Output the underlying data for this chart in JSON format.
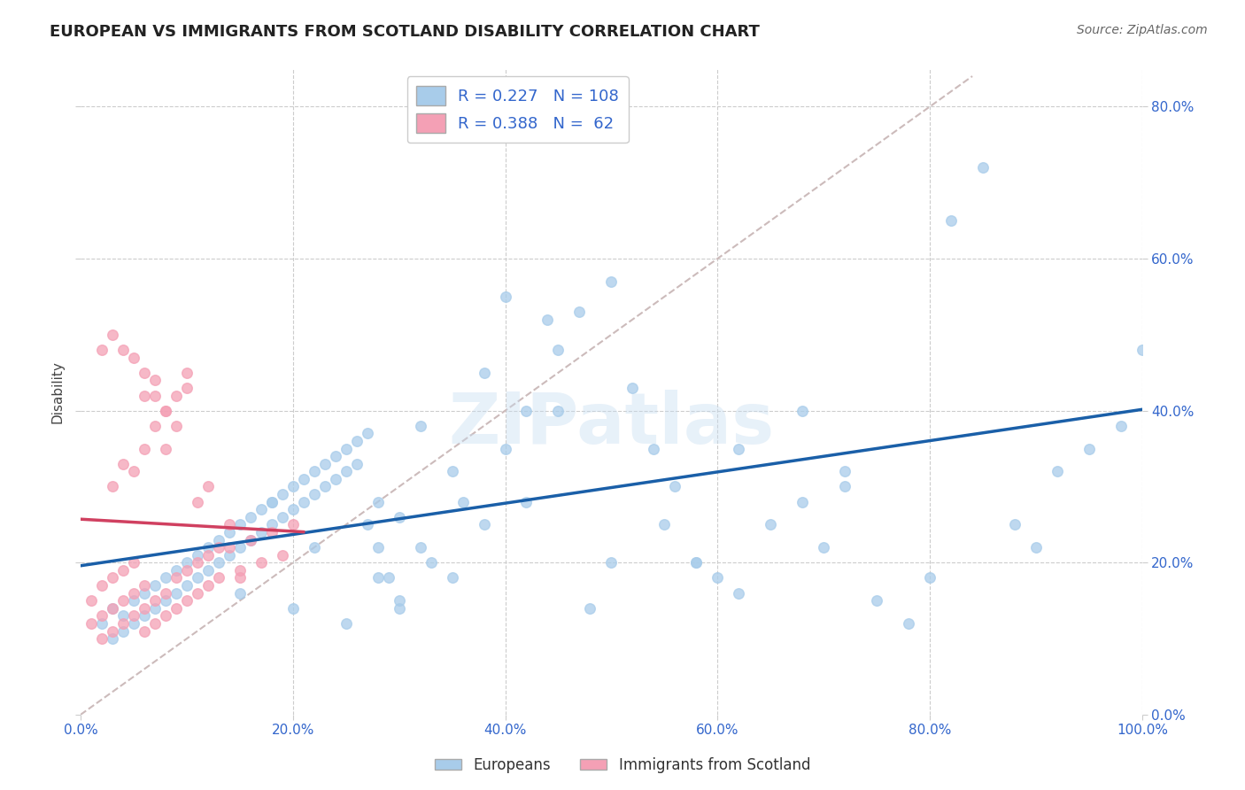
{
  "title": "EUROPEAN VS IMMIGRANTS FROM SCOTLAND DISABILITY CORRELATION CHART",
  "source": "Source: ZipAtlas.com",
  "ylabel": "Disability",
  "xlim": [
    0,
    1.0
  ],
  "ylim": [
    0,
    0.85
  ],
  "xticks": [
    0.0,
    0.2,
    0.4,
    0.6,
    0.8,
    1.0
  ],
  "yticks": [
    0.0,
    0.2,
    0.4,
    0.6,
    0.8
  ],
  "xtick_labels": [
    "0.0%",
    "20.0%",
    "40.0%",
    "60.0%",
    "80.0%",
    "100.0%"
  ],
  "ytick_labels": [
    "0.0%",
    "20.0%",
    "40.0%",
    "60.0%",
    "80.0%"
  ],
  "R_european": 0.227,
  "N_european": 108,
  "R_scotland": 0.388,
  "N_scotland": 62,
  "blue_color": "#A8CCEA",
  "pink_color": "#F4A0B5",
  "blue_line_color": "#1A5FA8",
  "pink_line_color": "#D04060",
  "diagonal_color": "#CCBBBB",
  "legend_text_color": "#3366CC",
  "watermark": "ZIPatlas",
  "legend_label_european": "Europeans",
  "legend_label_scotland": "Immigrants from Scotland",
  "blue_scatter_x": [
    0.02,
    0.03,
    0.03,
    0.04,
    0.04,
    0.05,
    0.05,
    0.06,
    0.06,
    0.07,
    0.07,
    0.08,
    0.08,
    0.09,
    0.09,
    0.1,
    0.1,
    0.11,
    0.11,
    0.12,
    0.12,
    0.13,
    0.13,
    0.14,
    0.14,
    0.15,
    0.15,
    0.16,
    0.16,
    0.17,
    0.17,
    0.18,
    0.18,
    0.19,
    0.19,
    0.2,
    0.2,
    0.21,
    0.21,
    0.22,
    0.22,
    0.23,
    0.23,
    0.24,
    0.24,
    0.25,
    0.25,
    0.26,
    0.26,
    0.27,
    0.27,
    0.28,
    0.28,
    0.29,
    0.3,
    0.3,
    0.32,
    0.33,
    0.35,
    0.36,
    0.38,
    0.4,
    0.42,
    0.44,
    0.45,
    0.47,
    0.5,
    0.52,
    0.54,
    0.56,
    0.58,
    0.6,
    0.62,
    0.65,
    0.68,
    0.7,
    0.72,
    0.75,
    0.78,
    0.8,
    0.82,
    0.85,
    0.88,
    0.9,
    0.92,
    0.95,
    0.98,
    1.0,
    0.4,
    0.45,
    0.5,
    0.55,
    0.3,
    0.35,
    0.2,
    0.25,
    0.15,
    0.18,
    0.22,
    0.28,
    0.32,
    0.38,
    0.42,
    0.48,
    0.58,
    0.62,
    0.68,
    0.72
  ],
  "blue_scatter_y": [
    0.12,
    0.1,
    0.14,
    0.11,
    0.13,
    0.15,
    0.12,
    0.16,
    0.13,
    0.17,
    0.14,
    0.18,
    0.15,
    0.19,
    0.16,
    0.2,
    0.17,
    0.21,
    0.18,
    0.22,
    0.19,
    0.23,
    0.2,
    0.24,
    0.21,
    0.25,
    0.22,
    0.26,
    0.23,
    0.27,
    0.24,
    0.28,
    0.25,
    0.29,
    0.26,
    0.3,
    0.27,
    0.31,
    0.28,
    0.32,
    0.29,
    0.33,
    0.3,
    0.34,
    0.31,
    0.35,
    0.32,
    0.36,
    0.33,
    0.37,
    0.25,
    0.22,
    0.28,
    0.18,
    0.26,
    0.14,
    0.38,
    0.2,
    0.32,
    0.28,
    0.45,
    0.55,
    0.4,
    0.52,
    0.48,
    0.53,
    0.57,
    0.43,
    0.35,
    0.3,
    0.2,
    0.18,
    0.35,
    0.25,
    0.4,
    0.22,
    0.3,
    0.15,
    0.12,
    0.18,
    0.65,
    0.72,
    0.25,
    0.22,
    0.32,
    0.35,
    0.38,
    0.48,
    0.35,
    0.4,
    0.2,
    0.25,
    0.15,
    0.18,
    0.14,
    0.12,
    0.16,
    0.28,
    0.22,
    0.18,
    0.22,
    0.25,
    0.28,
    0.14,
    0.2,
    0.16,
    0.28,
    0.32
  ],
  "pink_scatter_x": [
    0.01,
    0.01,
    0.02,
    0.02,
    0.02,
    0.03,
    0.03,
    0.03,
    0.04,
    0.04,
    0.04,
    0.05,
    0.05,
    0.05,
    0.06,
    0.06,
    0.06,
    0.07,
    0.07,
    0.08,
    0.08,
    0.09,
    0.09,
    0.1,
    0.1,
    0.11,
    0.11,
    0.12,
    0.12,
    0.13,
    0.14,
    0.15,
    0.16,
    0.17,
    0.18,
    0.19,
    0.2,
    0.06,
    0.07,
    0.08,
    0.09,
    0.1,
    0.03,
    0.04,
    0.05,
    0.06,
    0.07,
    0.08,
    0.09,
    0.1,
    0.11,
    0.12,
    0.13,
    0.14,
    0.15,
    0.05,
    0.06,
    0.04,
    0.07,
    0.03,
    0.08,
    0.02
  ],
  "pink_scatter_y": [
    0.12,
    0.15,
    0.13,
    0.17,
    0.1,
    0.14,
    0.18,
    0.11,
    0.15,
    0.19,
    0.12,
    0.16,
    0.2,
    0.13,
    0.17,
    0.11,
    0.14,
    0.15,
    0.12,
    0.13,
    0.16,
    0.14,
    0.18,
    0.15,
    0.19,
    0.16,
    0.2,
    0.17,
    0.21,
    0.18,
    0.22,
    0.19,
    0.23,
    0.2,
    0.24,
    0.21,
    0.25,
    0.42,
    0.44,
    0.4,
    0.38,
    0.45,
    0.3,
    0.33,
    0.32,
    0.35,
    0.38,
    0.4,
    0.42,
    0.43,
    0.28,
    0.3,
    0.22,
    0.25,
    0.18,
    0.47,
    0.45,
    0.48,
    0.42,
    0.5,
    0.35,
    0.48
  ]
}
